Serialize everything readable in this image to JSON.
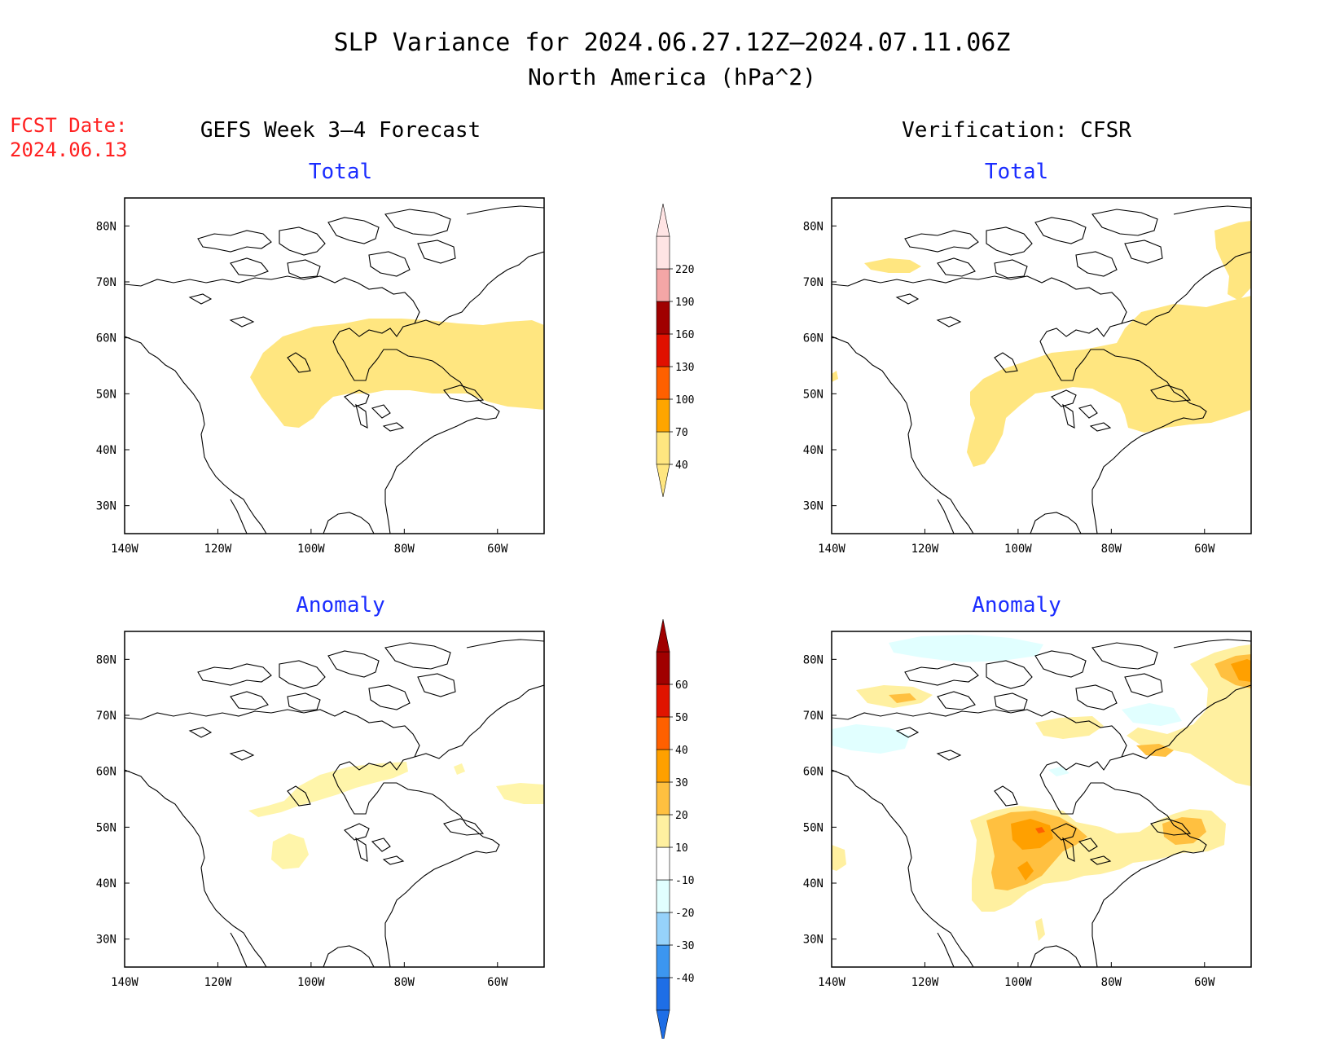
{
  "title": {
    "line1": "SLP Variance for 2024.06.27.12Z–2024.07.11.06Z",
    "line2": "North America (hPa^2)"
  },
  "fcst_date": {
    "label": "FCST Date:",
    "value": "2024.06.13"
  },
  "columns": {
    "left": "GEFS Week 3–4 Forecast",
    "right": "Verification: CFSR"
  },
  "panel_titles": {
    "total": "Total",
    "anomaly": "Anomaly"
  },
  "axes": {
    "x_ticks": [
      "140W",
      "120W",
      "100W",
      "80W",
      "60W"
    ],
    "x_values": [
      -140,
      -120,
      -100,
      -80,
      -60
    ],
    "y_ticks": [
      "80N",
      "70N",
      "60N",
      "50N",
      "40N",
      "30N"
    ],
    "y_values": [
      80,
      70,
      60,
      50,
      40,
      30
    ],
    "lon_range": [
      -140,
      -50
    ],
    "lat_range": [
      25,
      85
    ]
  },
  "colorbars": {
    "total": {
      "labels": [
        "40",
        "70",
        "100",
        "130",
        "160",
        "190",
        "220"
      ],
      "colors": [
        "#ffe680",
        "#ffa500",
        "#ff6000",
        "#e01000",
        "#a00000",
        "#f4a6a6",
        "#ffe4e4"
      ]
    },
    "anomaly": {
      "labels": [
        "-40",
        "-30",
        "-20",
        "-10",
        "10",
        "20",
        "30",
        "40",
        "50",
        "60"
      ],
      "colors": [
        "#1e6ee6",
        "#3c96f0",
        "#96d2fa",
        "#e1ffff",
        "#ffffff",
        "#fff0a0",
        "#ffc040",
        "#ffa000",
        "#ff6000",
        "#e01400",
        "#a00000"
      ]
    }
  },
  "colors": {
    "title_red": "#ff2020",
    "title_blue": "#1a2cff",
    "shade_yellow": "#ffe680",
    "shade_light_yellow": "#fff5aa",
    "shade_orange_light": "#ffc040",
    "shade_orange": "#ffa000",
    "shade_orange_dark": "#ff6000",
    "shade_cyan": "#e1ffff"
  }
}
